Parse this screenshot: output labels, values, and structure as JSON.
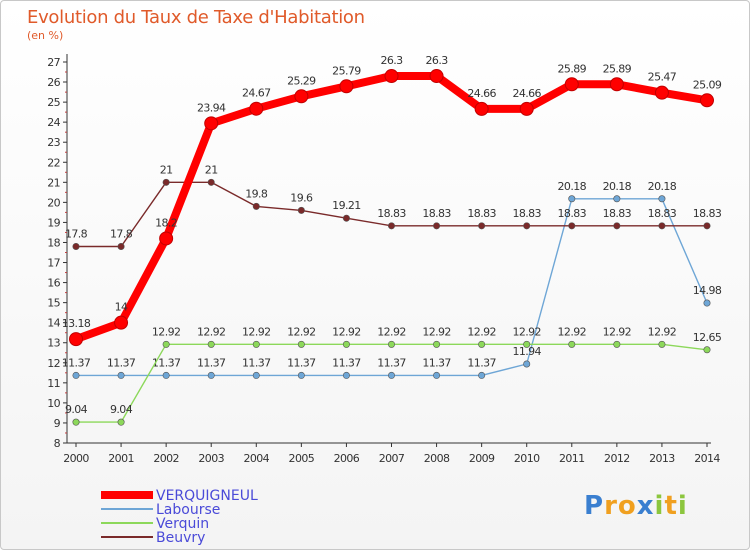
{
  "chart_data": {
    "type": "line",
    "title": "Evolution du Taux de Taxe d'Habitation",
    "subtitle": "(en %)",
    "x": [
      "2000",
      "2001",
      "2002",
      "2003",
      "2004",
      "2005",
      "2006",
      "2007",
      "2008",
      "2009",
      "2010",
      "2011",
      "2012",
      "2013",
      "2014"
    ],
    "ylim": [
      8,
      27
    ],
    "yticks": [
      8,
      9,
      10,
      11,
      12,
      13,
      14,
      15,
      16,
      17,
      18,
      19,
      20,
      21,
      22,
      23,
      24,
      25,
      26,
      27
    ],
    "grid": false,
    "legend_position": "bottom-left",
    "series": [
      {
        "name": "VERQUIGNEUL",
        "color": "#ff0000",
        "values": [
          13.18,
          14,
          18.2,
          23.94,
          24.67,
          25.29,
          25.79,
          26.3,
          26.3,
          24.66,
          24.66,
          25.89,
          25.89,
          25.47,
          25.09
        ],
        "labels": [
          "13.18",
          "14",
          "18.2",
          "23.94",
          "24.67",
          "25.29",
          "25.79",
          "26.3",
          "26.3",
          "24.66",
          "24.66",
          "25.89",
          "25.89",
          "25.47",
          "25.09"
        ]
      },
      {
        "name": "Labourse",
        "color": "#6ea6d6",
        "values": [
          11.37,
          11.37,
          11.37,
          11.37,
          11.37,
          11.37,
          11.37,
          11.37,
          11.37,
          11.37,
          11.94,
          20.18,
          20.18,
          20.18,
          14.98
        ],
        "labels": [
          "11.37",
          "11.37",
          "11.37",
          "11.37",
          "11.37",
          "11.37",
          "11.37",
          "11.37",
          "11.37",
          "11.37",
          "11.94",
          "20.18",
          "20.18",
          "20.18",
          "14.98"
        ]
      },
      {
        "name": "Verquin",
        "color": "#8cd85a",
        "values": [
          9.04,
          9.04,
          12.92,
          12.92,
          12.92,
          12.92,
          12.92,
          12.92,
          12.92,
          12.92,
          12.92,
          12.92,
          12.92,
          12.92,
          12.65
        ],
        "labels": [
          "9.04",
          "9.04",
          "12.92",
          "12.92",
          "12.92",
          "12.92",
          "12.92",
          "12.92",
          "12.92",
          "12.92",
          "12.92",
          "12.92",
          "12.92",
          "12.92",
          "12.65"
        ]
      },
      {
        "name": "Beuvry",
        "color": "#7a2a2a",
        "values": [
          17.8,
          17.8,
          21,
          21,
          19.8,
          19.6,
          19.21,
          18.83,
          18.83,
          18.83,
          18.83,
          18.83,
          18.83,
          18.83,
          18.83
        ],
        "labels": [
          "17.8",
          "17.8",
          "21",
          "21",
          "19.8",
          "19.6",
          "19.21",
          "18.83",
          "18.83",
          "18.83",
          "18.83",
          "18.83",
          "18.83",
          "18.83",
          "18.83"
        ]
      }
    ]
  },
  "logo": {
    "letters": [
      "P",
      "r",
      "o",
      "x",
      "i",
      "t",
      "i"
    ],
    "colors": [
      "#3a7fd0",
      "#f0a020",
      "#f0a020",
      "#3a7fd0",
      "#8cc63e",
      "#f0a020",
      "#8cc63e"
    ]
  }
}
